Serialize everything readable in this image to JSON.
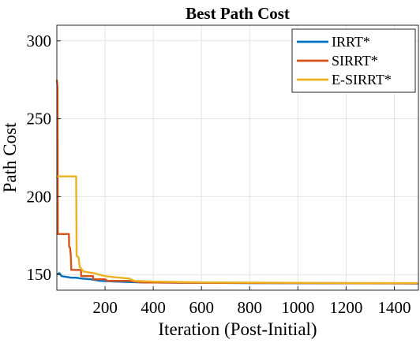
{
  "chart_data": {
    "type": "line",
    "title": "Best Path Cost",
    "xlabel": "Iteration (Post-Initial)",
    "ylabel": "Path Cost",
    "xlim": [
      0,
      1500
    ],
    "ylim": [
      140,
      310
    ],
    "x_ticks": [
      200,
      400,
      600,
      800,
      1000,
      1200,
      1400
    ],
    "y_ticks": [
      150,
      200,
      250,
      300
    ],
    "grid": true,
    "legend_position": "top-right",
    "series": [
      {
        "name": "IRRT*",
        "color": "#0072BD",
        "points": [
          [
            0,
            150
          ],
          [
            10,
            151
          ],
          [
            20,
            149
          ],
          [
            40,
            148.5
          ],
          [
            60,
            148
          ],
          [
            80,
            148
          ],
          [
            100,
            147.5
          ],
          [
            140,
            147
          ],
          [
            180,
            146
          ],
          [
            250,
            145.5
          ],
          [
            350,
            145
          ],
          [
            500,
            144.8
          ],
          [
            800,
            144.5
          ],
          [
            1500,
            144.3
          ]
        ]
      },
      {
        "name": "SIRRT*",
        "color": "#D95319",
        "points": [
          [
            0,
            275
          ],
          [
            3,
            270
          ],
          [
            4,
            176
          ],
          [
            50,
            176
          ],
          [
            51,
            168
          ],
          [
            55,
            167
          ],
          [
            58,
            162
          ],
          [
            60,
            153
          ],
          [
            100,
            153
          ],
          [
            101,
            149
          ],
          [
            150,
            149
          ],
          [
            151,
            147
          ],
          [
            200,
            147
          ],
          [
            210,
            146
          ],
          [
            300,
            146
          ],
          [
            350,
            145
          ],
          [
            600,
            144.7
          ],
          [
            1500,
            144.3
          ]
        ]
      },
      {
        "name": "E-SIRRT*",
        "color": "#EDB120",
        "points": [
          [
            0,
            212
          ],
          [
            1,
            213
          ],
          [
            80,
            213
          ],
          [
            82,
            162
          ],
          [
            90,
            161
          ],
          [
            95,
            155
          ],
          [
            110,
            152
          ],
          [
            150,
            151
          ],
          [
            200,
            149
          ],
          [
            260,
            148
          ],
          [
            300,
            147.5
          ],
          [
            320,
            146
          ],
          [
            400,
            145.5
          ],
          [
            600,
            145
          ],
          [
            1000,
            144.7
          ],
          [
            1500,
            144.5
          ]
        ]
      }
    ]
  }
}
